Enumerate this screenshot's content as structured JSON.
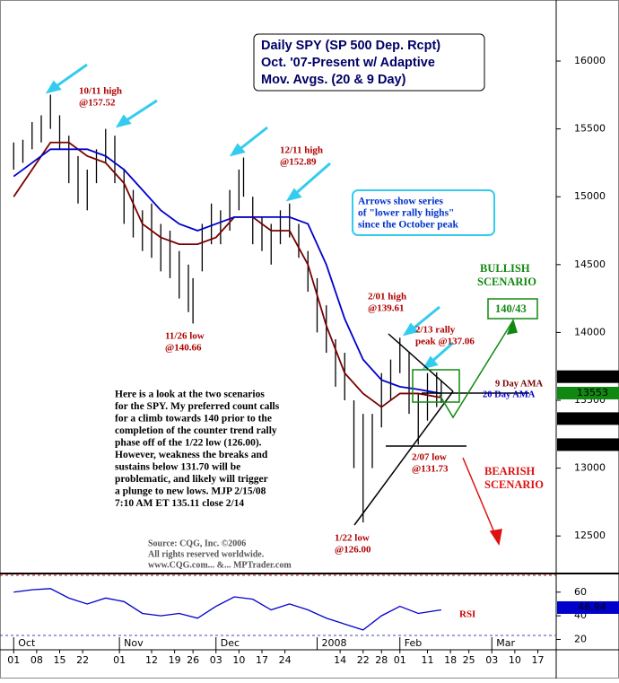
{
  "chart_data": {
    "type": "ohlc",
    "title": [
      "Daily SPY (SP 500 Dep. Rcpt)",
      "Oct. '07-Present w/ Adaptive",
      "Mov. Avgs. (20 & 9 Day)"
    ],
    "xlim": [
      -2,
      118
    ],
    "xticks": [
      {
        "value": 0,
        "label": "01"
      },
      {
        "value": 5,
        "label": "08"
      },
      {
        "value": 10,
        "label": "15"
      },
      {
        "value": 15,
        "label": "22"
      },
      {
        "value": 23,
        "label": "01"
      },
      {
        "value": 30,
        "label": "12"
      },
      {
        "value": 35,
        "label": "19"
      },
      {
        "value": 39,
        "label": "26"
      },
      {
        "value": 44,
        "label": "03"
      },
      {
        "value": 49,
        "label": "10"
      },
      {
        "value": 54,
        "label": "17"
      },
      {
        "value": 59,
        "label": "24"
      },
      {
        "value": 71,
        "label": "14"
      },
      {
        "value": 76,
        "label": "22"
      },
      {
        "value": 80,
        "label": "28"
      },
      {
        "value": 84,
        "label": "01"
      },
      {
        "value": 90,
        "label": "11"
      },
      {
        "value": 95,
        "label": "18"
      },
      {
        "value": 99,
        "label": "25"
      },
      {
        "value": 104,
        "label": "03"
      },
      {
        "value": 109,
        "label": "10"
      },
      {
        "value": 114,
        "label": "17"
      }
    ],
    "months": [
      {
        "value": 0,
        "label": "Oct"
      },
      {
        "value": 23,
        "label": "Nov"
      },
      {
        "value": 44,
        "label": "Dec"
      },
      {
        "value": 66,
        "label": "2008"
      },
      {
        "value": 84,
        "label": "Feb"
      },
      {
        "value": 104,
        "label": "Mar"
      }
    ],
    "ylim": [
      12230,
      16450
    ],
    "yticks": [
      12500,
      13000,
      13500,
      14000,
      14500,
      15000,
      15500,
      16000
    ],
    "bars": {
      "x": [
        0,
        2,
        4,
        6,
        8,
        10,
        12,
        14,
        16,
        18,
        20,
        22,
        24,
        26,
        28,
        30,
        32,
        34,
        36,
        38,
        39,
        41,
        43,
        45,
        47,
        49,
        50,
        52,
        54,
        56,
        58,
        60,
        62,
        64,
        66,
        68,
        70,
        72,
        74,
        76,
        78,
        80,
        82,
        84,
        86,
        88,
        90,
        92,
        93
      ],
      "high": [
        15400,
        15420,
        15550,
        15600,
        15752,
        15600,
        15450,
        15300,
        15200,
        15350,
        15500,
        15450,
        15200,
        15050,
        14900,
        14950,
        14800,
        14750,
        14600,
        14500,
        14400,
        14800,
        14950,
        14900,
        15050,
        15200,
        15289,
        15000,
        14850,
        14800,
        14900,
        14950,
        14800,
        14600,
        14400,
        14200,
        13950,
        13850,
        13500,
        13400,
        13400,
        13700,
        13800,
        13961,
        13850,
        13550,
        13700,
        13706,
        13650
      ],
      "low": [
        15200,
        15250,
        15350,
        15400,
        15500,
        15350,
        15100,
        14950,
        14900,
        15100,
        15250,
        15100,
        14800,
        14700,
        14600,
        14550,
        14450,
        14400,
        14250,
        14150,
        14066,
        14450,
        14650,
        14650,
        14750,
        14900,
        15000,
        14650,
        14600,
        14500,
        14650,
        14700,
        14550,
        14300,
        14000,
        13850,
        13600,
        13500,
        13000,
        12600,
        13000,
        13300,
        13500,
        13700,
        13400,
        13173,
        13350,
        13450,
        13480
      ],
      "color": "#000000"
    },
    "ama_x": [
      0,
      4,
      8,
      12,
      16,
      20,
      24,
      28,
      32,
      36,
      40,
      44,
      48,
      52,
      56,
      60,
      64,
      68,
      72,
      76,
      80,
      84,
      88,
      93
    ],
    "series": [
      {
        "name": "9 Day AMA",
        "color": "#7a0000",
        "values": [
          15000,
          15200,
          15400,
          15400,
          15300,
          15250,
          15100,
          14800,
          14700,
          14650,
          14650,
          14700,
          14850,
          14850,
          14750,
          14750,
          14500,
          14050,
          13700,
          13550,
          13450,
          13550,
          13550,
          13520
        ]
      },
      {
        "name": "20 Day AMA",
        "color": "#0000cc",
        "values": [
          15150,
          15250,
          15350,
          15350,
          15350,
          15300,
          15200,
          15050,
          14900,
          14800,
          14750,
          14800,
          14850,
          14850,
          14850,
          14850,
          14800,
          14500,
          14100,
          13800,
          13650,
          13600,
          13580,
          13550
        ]
      }
    ],
    "price_flags": [
      {
        "value": 13674,
        "color": "#000000"
      },
      {
        "value": 13553,
        "color": "#118811"
      },
      {
        "value": 13365,
        "color": "#000000"
      },
      {
        "value": 13173,
        "color": "#000000"
      }
    ],
    "rsi": {
      "name": "RSI",
      "color": "#0000cc",
      "ylim": [
        12,
        75
      ],
      "yticks": [
        20,
        40,
        60
      ],
      "values": [
        60,
        62,
        63,
        55,
        50,
        55,
        52,
        42,
        40,
        42,
        38,
        48,
        56,
        54,
        45,
        50,
        45,
        38,
        33,
        28,
        40,
        48,
        42,
        45
      ],
      "last": 46.94
    },
    "annotations": [
      {
        "lines": [
          "10/11 high",
          "@157.52"
        ]
      },
      {
        "lines": [
          "12/11 high",
          "@152.89"
        ]
      },
      {
        "lines": [
          "11/26 low",
          "@140.66"
        ]
      },
      {
        "lines": [
          "2/01 high",
          "@139.61"
        ]
      },
      {
        "lines": [
          "2/13 rally",
          "peak @137.06"
        ]
      },
      {
        "lines": [
          "2/07 low",
          "@131.73"
        ]
      },
      {
        "lines": [
          "1/22 low",
          "@126.00"
        ]
      },
      {
        "lines": [
          "Arrows show series",
          "of \"lower rally highs\"",
          "since the October peak"
        ]
      },
      {
        "lines": [
          "BULLISH",
          "SCENARIO"
        ]
      },
      {
        "lines": [
          "140/43"
        ]
      },
      {
        "lines": [
          "BEARISH",
          "SCENARIO"
        ]
      }
    ],
    "commentary": [
      "Here is a look at the two scenarios",
      "for the SPY. My preferred count calls",
      "for a climb towards 140 prior to the",
      "completion of the counter trend rally",
      "phase off of the 1/22 low (126.00).",
      "However, weakness the breaks and",
      "sustains below 131.70 will be",
      "problematic, and likely will trigger",
      "a plunge to new lows. MJP  2/15/08",
      "7:10 AM ET  135.11 close 2/14"
    ],
    "source": [
      "Source: CQG, Inc. ©2006",
      "All rights reserved worldwide.",
      "www.CQG.com... &... MPTrader.com"
    ]
  }
}
